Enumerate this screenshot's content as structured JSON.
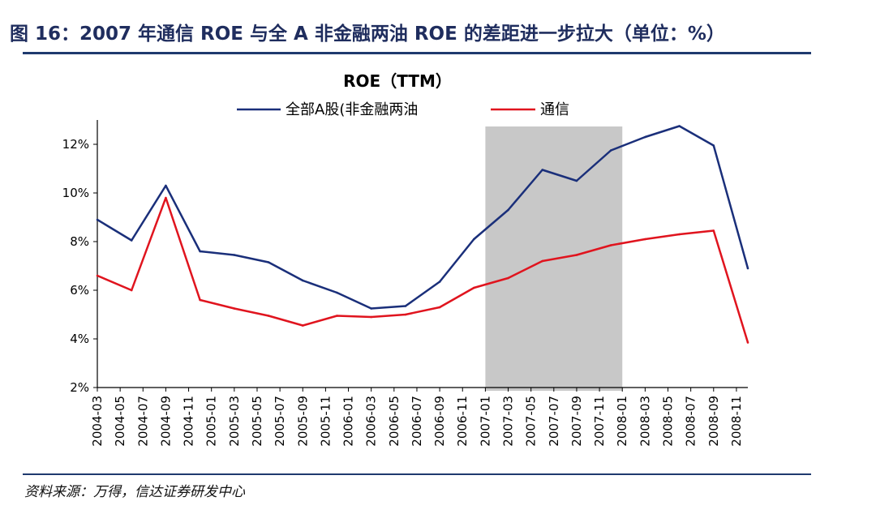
{
  "figure": {
    "title": "图 16：2007 年通信 ROE 与全 A 非金融两油 ROE 的差距进一步拉大（单位：%）",
    "source": "资料来源：万得，信达证券研发中心"
  },
  "colors": {
    "series_all": "#1a2f7a",
    "series_telecom": "#e0141e",
    "highlight": "#c8c8c8",
    "rule": "#1f3a6e"
  },
  "chart_data": {
    "type": "line",
    "title": "ROE（TTM）",
    "xlabel": "",
    "ylabel": "",
    "ylim": [
      2,
      13
    ],
    "yticks": [
      "2%",
      "4%",
      "6%",
      "8%",
      "10%",
      "12%"
    ],
    "ytick_values": [
      2,
      4,
      6,
      8,
      10,
      12
    ],
    "x_tick_labels": [
      "2004-03",
      "2004-05",
      "2004-07",
      "2004-09",
      "2004-11",
      "2005-01",
      "2005-03",
      "2005-05",
      "2005-07",
      "2005-09",
      "2005-11",
      "2006-01",
      "2006-03",
      "2006-05",
      "2006-07",
      "2006-09",
      "2006-11",
      "2007-01",
      "2007-03",
      "2007-05",
      "2007-07",
      "2007-09",
      "2007-11",
      "2008-01",
      "2008-03",
      "2008-05",
      "2008-07",
      "2008-09",
      "2008-11"
    ],
    "x_month_start": "2004-03",
    "x_month_end": "2008-12",
    "highlight_range": [
      "2007-01",
      "2008-01"
    ],
    "series": [
      {
        "name": "全部A股(非金融两油",
        "color": "#1a2f7a",
        "x": [
          "2004-03",
          "2004-06",
          "2004-09",
          "2004-12",
          "2005-03",
          "2005-06",
          "2005-09",
          "2005-12",
          "2006-03",
          "2006-06",
          "2006-09",
          "2006-12",
          "2007-03",
          "2007-06",
          "2007-09",
          "2007-12",
          "2008-03",
          "2008-06",
          "2008-09",
          "2008-12"
        ],
        "values": [
          8.9,
          8.05,
          10.3,
          7.6,
          7.45,
          7.15,
          6.4,
          5.9,
          5.25,
          5.35,
          6.35,
          8.1,
          9.3,
          10.95,
          10.5,
          11.75,
          12.3,
          12.75,
          11.95,
          6.9
        ]
      },
      {
        "name": "通信",
        "color": "#e0141e",
        "x": [
          "2004-03",
          "2004-06",
          "2004-09",
          "2004-12",
          "2005-03",
          "2005-06",
          "2005-09",
          "2005-12",
          "2006-03",
          "2006-06",
          "2006-09",
          "2006-12",
          "2007-03",
          "2007-06",
          "2007-09",
          "2007-12",
          "2008-03",
          "2008-06",
          "2008-09",
          "2008-12"
        ],
        "values": [
          6.6,
          6.0,
          9.8,
          5.6,
          5.25,
          4.95,
          4.55,
          4.95,
          4.9,
          5.0,
          5.3,
          6.1,
          6.5,
          7.2,
          7.45,
          7.85,
          8.1,
          8.3,
          8.45,
          3.85
        ]
      }
    ],
    "legend_position": "top-center"
  }
}
